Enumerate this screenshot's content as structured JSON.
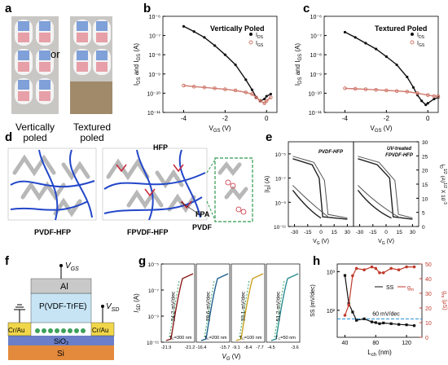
{
  "panel_labels": {
    "a": "a",
    "b": "b",
    "c": "c",
    "d": "d",
    "e": "e",
    "f": "f",
    "g": "g",
    "h": "h"
  },
  "panel_a": {
    "caption_left": "Vertically",
    "caption_left2": "poled",
    "caption_right": "Textured",
    "caption_right2": "poled",
    "connector": "or"
  },
  "panel_b": {
    "legend_title": "Vertically Poled",
    "legend_ids": "I",
    "legend_ids_sub": "DS",
    "legend_igs": "I",
    "legend_igs_sub": "GS"
  },
  "panel_c": {
    "legend_title": "Textured Poled",
    "legend_ids": "I",
    "legend_ids_sub": "DS",
    "legend_igs": "I",
    "legend_igs_sub": "GS"
  },
  "panel_d": {
    "hfp": "HFP",
    "fpa": "FPA",
    "pvdf": "PVDF",
    "label_left": "PVDF-HFP",
    "label_right": "FPVDF-HFP"
  },
  "panel_e": {
    "label_left": "PVDF-HFP",
    "label_right1": "UV-treated",
    "label_right2": "FPVDF-HFP"
  },
  "panel_f": {
    "al": "Al",
    "dielectric": "P(VDF-TrFE)",
    "cr_left": "Cr/Au",
    "cr_right": "Cr/Au",
    "sio2": "SiO₂",
    "si": "Si",
    "vgs": "V",
    "vgs_sub": "GS",
    "vsd": "V",
    "vsd_sub": "SD"
  },
  "panel_g": {
    "ss": [
      "24.2 mV/dec",
      "29.6 mV/dec",
      "33.1 mV/dec",
      "51.2 mV/dec"
    ],
    "tc": [
      "T",
      "T",
      "T",
      "T"
    ],
    "tc_vals": [
      "=300 nm",
      "=200 nm",
      "=100 nm",
      "=50 nm"
    ]
  },
  "panel_h": {
    "legend_ss": "SS",
    "legend_gm": "g",
    "legend_gm_sub": "m",
    "line_label": "60 mV/dec"
  },
  "chart_data": [
    {
      "type": "line",
      "title": "Vertically Poled",
      "xlabel": "V_GS (V)",
      "ylabel": "I_DS and I_GS (A)",
      "xlim": [
        -5,
        0.5
      ],
      "ylim": [
        1e-11,
        1e-06
      ],
      "yscale": "log",
      "xticks": [
        "-4",
        "-2",
        "0"
      ],
      "yticks": [
        "10⁻¹¹",
        "10⁻¹⁰",
        "10⁻⁹",
        "10⁻⁸",
        "10⁻⁷",
        "10⁻⁶"
      ],
      "series": [
        {
          "name": "I_DS",
          "x": [
            -4,
            -3.5,
            -3,
            -2.5,
            -2,
            -1.5,
            -1,
            -0.7,
            -0.5,
            -0.3,
            -0.1,
            0,
            0.2
          ],
          "y": [
            3e-07,
            1.6e-07,
            8e-08,
            3e-08,
            1e-08,
            3e-09,
            5e-10,
            1.5e-10,
            6e-11,
            4e-11,
            5e-11,
            7e-11,
            9e-11
          ]
        },
        {
          "name": "I_GS",
          "x": [
            -4,
            -3.5,
            -3,
            -2.5,
            -2,
            -1.5,
            -1,
            -0.7,
            -0.5,
            -0.3,
            -0.1,
            0,
            0.2
          ],
          "y": [
            2.5e-10,
            2.2e-10,
            2e-10,
            1.8e-10,
            1.6e-10,
            1.4e-10,
            1.1e-10,
            9e-11,
            6e-11,
            4e-11,
            3e-11,
            4e-11,
            6e-11
          ]
        }
      ]
    },
    {
      "type": "line",
      "title": "Textured Poled",
      "xlabel": "V_GS (V)",
      "ylabel": "I_DS and I_GS (A)",
      "xlim": [
        -5,
        0.5
      ],
      "ylim": [
        1e-11,
        1e-06
      ],
      "yscale": "log",
      "xticks": [
        "-4",
        "-2",
        "0"
      ],
      "yticks": [
        "10⁻¹¹",
        "10⁻¹⁰",
        "10⁻⁹",
        "10⁻⁸",
        "10⁻⁷",
        "10⁻⁶"
      ],
      "series": [
        {
          "name": "I_DS",
          "x": [
            -4,
            -3.5,
            -3,
            -2.5,
            -2,
            -1.5,
            -1,
            -0.7,
            -0.5,
            -0.3,
            -0.1,
            0,
            0.3,
            0.5
          ],
          "y": [
            1.5e-07,
            8e-08,
            4e-08,
            2e-08,
            8e-09,
            3e-09,
            7e-10,
            2e-10,
            8e-11,
            4e-11,
            2.5e-11,
            3e-11,
            5e-11,
            6e-11
          ]
        },
        {
          "name": "I_GS",
          "x": [
            -4,
            -3.5,
            -3,
            -2.5,
            -2,
            -1.5,
            -1,
            -0.5,
            0,
            0.3,
            0.5
          ],
          "y": [
            1.8e-10,
            1.7e-10,
            1.6e-10,
            1.5e-10,
            1.4e-10,
            1.3e-10,
            1.2e-10,
            1e-10,
            8e-11,
            7e-11,
            7e-11
          ]
        }
      ]
    },
    {
      "type": "line",
      "title": "",
      "xlabel": "V_G (V)",
      "ylabel": "|I_D| (A)",
      "y2label": "I_D^{1/2} (A)^{1/2} X 10⁻³",
      "xticks": [
        "-30",
        "-15",
        "0",
        "15",
        "30",
        "-30",
        "-15",
        "0",
        "15",
        "30"
      ],
      "yticks": [
        "10⁻¹¹",
        "10⁻⁹",
        "10⁻⁷",
        "10⁻⁵"
      ],
      "y2ticks": [
        "0",
        "5",
        "10",
        "15",
        "20",
        "25",
        "30"
      ]
    },
    {
      "type": "line",
      "title": "",
      "xlabel": "V_G (V)",
      "ylabel": "I_SD (A)",
      "xticks": [
        "-21.9",
        "-21.2",
        "-16.4",
        "-15.7",
        "-9.1",
        "-8.4",
        "-7.7",
        "-4.5",
        "-3.6"
      ],
      "yticks": [
        "10⁻¹¹",
        "10⁻⁹",
        "10⁻⁷",
        "10⁻⁵"
      ]
    },
    {
      "type": "line",
      "title": "",
      "xlabel": "L_ch (nm)",
      "ylabel": "SS (mV/dec)",
      "y2label": "g_m (μS)",
      "xlim": [
        30,
        140
      ],
      "xticks": [
        "40",
        "80",
        "120"
      ],
      "yticks": [
        "10²",
        "10³"
      ],
      "y2ticks": [
        "0",
        "10",
        "20",
        "30",
        "40",
        "50"
      ],
      "series": [
        {
          "name": "SS",
          "x": [
            40,
            45,
            50,
            55,
            65,
            75,
            80,
            85,
            90,
            100,
            110,
            120,
            130
          ],
          "y": [
            800,
            150,
            90,
            55,
            60,
            50,
            48,
            45,
            47,
            45,
            43,
            42,
            40
          ]
        },
        {
          "name": "g_m",
          "x": [
            40,
            45,
            50,
            55,
            65,
            75,
            80,
            85,
            90,
            100,
            110,
            120,
            130
          ],
          "y": [
            15,
            22,
            42,
            47,
            46,
            48,
            47,
            44,
            44,
            47,
            46,
            48,
            48
          ]
        }
      ],
      "reference_line": {
        "y": 60,
        "label": "60 mV/dec"
      }
    }
  ]
}
